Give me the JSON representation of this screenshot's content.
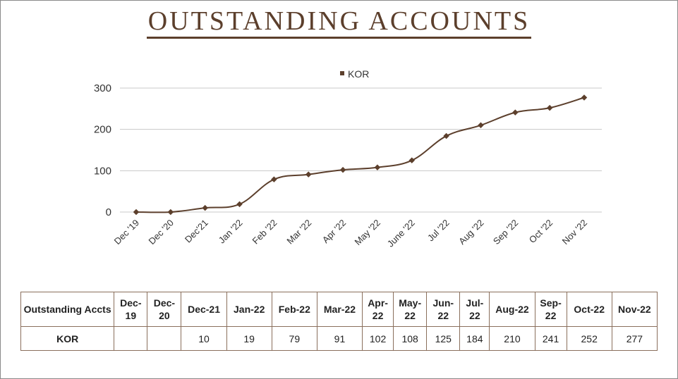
{
  "title": "OUTSTANDING ACCOUNTS",
  "colors": {
    "series": "#5c3f2c",
    "grid": "#c8c8c8",
    "title": "#5c3f2c",
    "table_border": "#8a6f5c"
  },
  "chart_data": {
    "type": "line",
    "title": "OUTSTANDING ACCOUNTS",
    "categories": [
      "Dec '19",
      "Dec '20",
      "Dec'21",
      "Jan '22",
      "Feb '22",
      "Mar '22",
      "Apr '22",
      "May '22",
      "June '22",
      "Jul '22",
      "Aug '22",
      "Sep '22",
      "Oct '22",
      "Nov '22"
    ],
    "series": [
      {
        "name": "KOR",
        "values": [
          0,
          0,
          10,
          19,
          79,
          91,
          102,
          108,
          125,
          184,
          210,
          241,
          252,
          277
        ]
      }
    ],
    "y_ticks": [
      "0",
      "100",
      "200",
      "300"
    ],
    "ylim": [
      0,
      300
    ],
    "grid": true,
    "legend": "top-center",
    "smooth": true
  },
  "table": {
    "row_header_label": "Outstanding Accts",
    "headers": [
      "Dec-19",
      "Dec-20",
      "Dec-21",
      "Jan-22",
      "Feb-22",
      "Mar-22",
      "Apr-22",
      "May-22",
      "Jun-22",
      "Jul-22",
      "Aug-22",
      "Sep-22",
      "Oct-22",
      "Nov-22"
    ],
    "rows": [
      {
        "label": "KOR",
        "values": [
          "",
          "",
          "10",
          "19",
          "79",
          "91",
          "102",
          "108",
          "125",
          "184",
          "210",
          "241",
          "252",
          "277"
        ]
      }
    ]
  }
}
